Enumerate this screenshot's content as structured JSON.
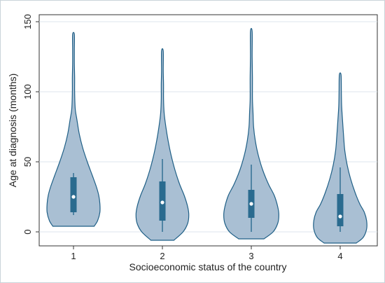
{
  "chart_data": {
    "type": "violin",
    "xlabel": "Socioeconomic status of the country",
    "ylabel": "Age at diagnosis (months)",
    "categories": [
      "1",
      "2",
      "3",
      "4"
    ],
    "ylim": [
      -10,
      155
    ],
    "yticks": [
      0,
      50,
      100,
      150
    ],
    "grid": "horizontal",
    "colors": {
      "violin_fill": "#a9bfd3",
      "violin_stroke": "#1f5f86",
      "box_fill": "#2a6b8f",
      "median_point": "#ffffff",
      "grid": "#dde6ec"
    },
    "series": [
      {
        "category": "1",
        "min": 4,
        "max": 141,
        "q1": 14,
        "median": 25,
        "q3": 39,
        "whisker_low": 12,
        "whisker_high": 42,
        "density": [
          [
            4,
            36
          ],
          [
            8,
            42
          ],
          [
            14,
            46
          ],
          [
            20,
            46
          ],
          [
            26,
            44
          ],
          [
            32,
            40
          ],
          [
            40,
            33
          ],
          [
            50,
            24
          ],
          [
            60,
            16
          ],
          [
            70,
            10
          ],
          [
            80,
            6
          ],
          [
            88,
            3
          ],
          [
            100,
            2
          ],
          [
            110,
            2
          ],
          [
            120,
            1.5
          ],
          [
            130,
            1.5
          ],
          [
            141,
            1.5
          ]
        ]
      },
      {
        "category": "2",
        "min": -6,
        "max": 129,
        "q1": 8,
        "median": 21,
        "q3": 36,
        "whisker_low": 0,
        "whisker_high": 52,
        "density": [
          [
            -6,
            20
          ],
          [
            0,
            36
          ],
          [
            6,
            44
          ],
          [
            12,
            46
          ],
          [
            18,
            44
          ],
          [
            26,
            38
          ],
          [
            34,
            30
          ],
          [
            44,
            22
          ],
          [
            55,
            15
          ],
          [
            65,
            10
          ],
          [
            75,
            6
          ],
          [
            85,
            3
          ],
          [
            95,
            2
          ],
          [
            105,
            2
          ],
          [
            115,
            1.5
          ],
          [
            129,
            1.5
          ]
        ]
      },
      {
        "category": "3",
        "min": -5,
        "max": 143,
        "q1": 10,
        "median": 20,
        "q3": 30,
        "whisker_low": 0,
        "whisker_high": 48,
        "density": [
          [
            -5,
            22
          ],
          [
            0,
            38
          ],
          [
            6,
            46
          ],
          [
            12,
            48
          ],
          [
            18,
            46
          ],
          [
            26,
            40
          ],
          [
            34,
            30
          ],
          [
            44,
            20
          ],
          [
            55,
            12
          ],
          [
            65,
            7
          ],
          [
            75,
            4
          ],
          [
            85,
            3
          ],
          [
            95,
            2
          ],
          [
            110,
            2
          ],
          [
            125,
            1.5
          ],
          [
            143,
            1.5
          ]
        ]
      },
      {
        "category": "4",
        "min": -8,
        "max": 112,
        "q1": 4,
        "median": 11,
        "q3": 27,
        "whisker_low": 0,
        "whisker_high": 46,
        "density": [
          [
            -8,
            28
          ],
          [
            -4,
            40
          ],
          [
            2,
            46
          ],
          [
            8,
            46
          ],
          [
            14,
            42
          ],
          [
            20,
            34
          ],
          [
            28,
            26
          ],
          [
            38,
            18
          ],
          [
            48,
            12
          ],
          [
            58,
            8
          ],
          [
            68,
            6
          ],
          [
            80,
            4
          ],
          [
            90,
            2.5
          ],
          [
            100,
            2
          ],
          [
            112,
            1.5
          ]
        ]
      }
    ]
  }
}
